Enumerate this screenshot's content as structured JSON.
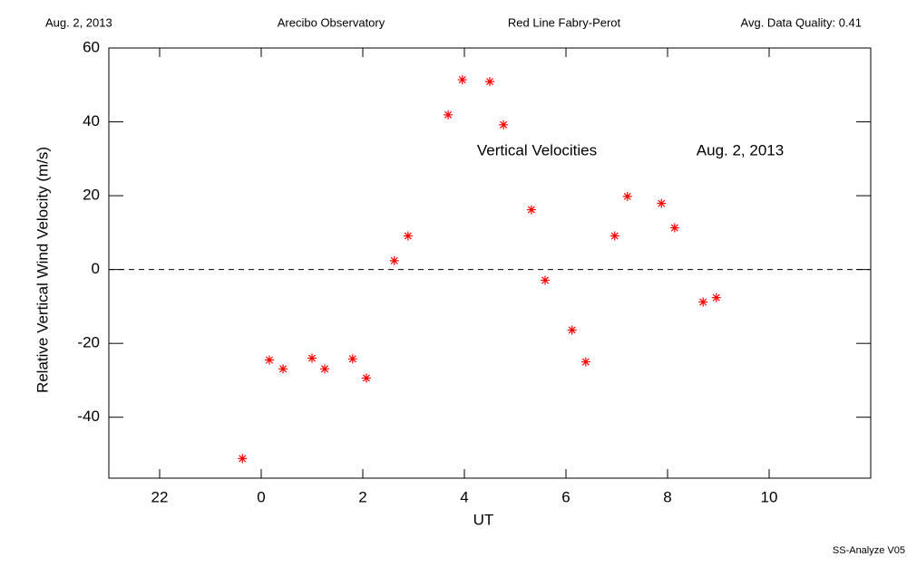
{
  "header": [
    "Aug. 2, 2013",
    "Arecibo Observatory",
    "Red Line Fabry-Perot",
    "Avg. Data Quality: 0.41"
  ],
  "footer": "SS-Analyze V05",
  "chart_data": {
    "type": "scatter",
    "x_label": "UT",
    "y_label": "Relative Vertical Wind Velocity (m/s)",
    "annotations": [
      "Vertical Velocities",
      "Aug. 2, 2013"
    ],
    "x": [
      -0.37,
      0.16,
      0.43,
      1.0,
      1.25,
      1.8,
      2.07,
      2.62,
      2.89,
      3.68,
      3.96,
      4.5,
      4.77,
      5.32,
      5.59,
      6.12,
      6.39,
      6.96,
      7.21,
      7.88,
      8.14,
      8.7,
      8.96
    ],
    "values": [
      -51.2,
      -24.5,
      -26.9,
      -24.0,
      -26.9,
      -24.2,
      -29.4,
      2.4,
      9.1,
      41.9,
      51.4,
      50.9,
      39.2,
      16.2,
      -2.9,
      -16.4,
      -25.0,
      9.1,
      19.8,
      17.9,
      11.3,
      -8.8,
      -7.6
    ],
    "color": "#ff0000",
    "xlim": [
      -3,
      12
    ],
    "xticks": [
      {
        "value": -2,
        "label": "22"
      },
      0,
      2,
      4,
      6,
      8,
      10
    ],
    "ylim": [
      -56.5,
      60
    ],
    "yticks": [
      -40,
      -20,
      0,
      20,
      40,
      60
    ],
    "reference_line": 0
  }
}
